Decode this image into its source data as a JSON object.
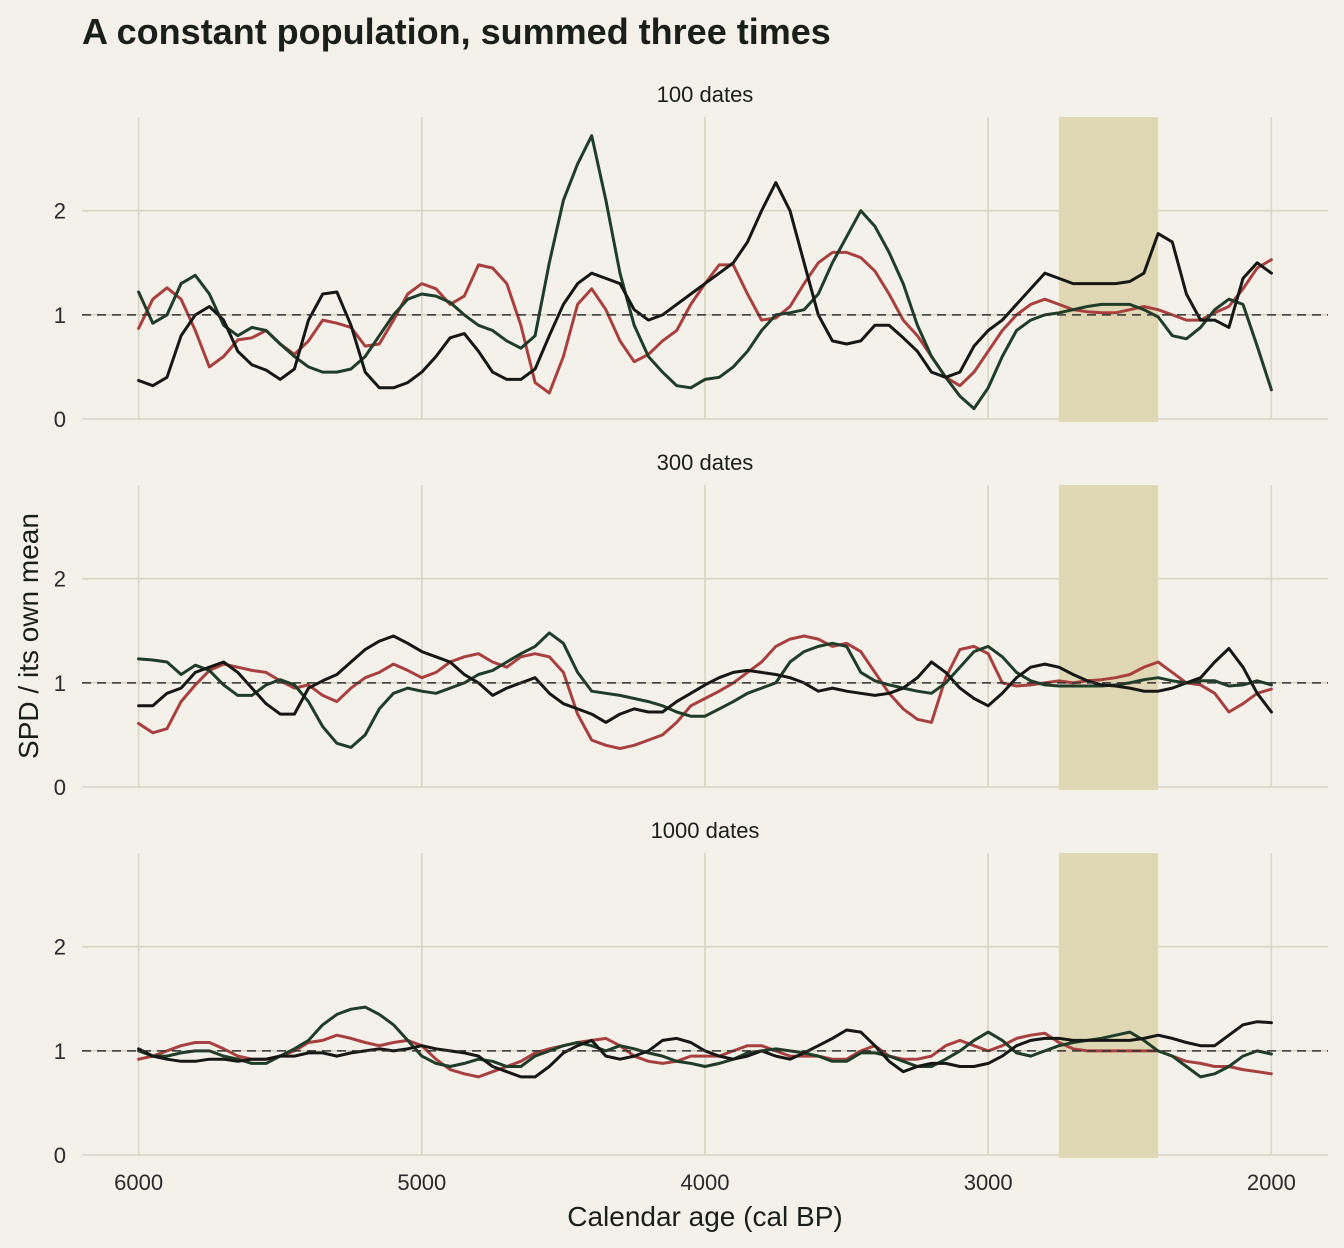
{
  "chart_data": {
    "type": "line",
    "title": "A constant population, summed three times",
    "xlabel": "Calendar age (cal BP)",
    "ylabel": "SPD / its own mean",
    "x_reversed": true,
    "xlim": [
      6200,
      1800
    ],
    "ylim": [
      0,
      2.9
    ],
    "x_ticks": [
      6000,
      5000,
      4000,
      3000,
      2000
    ],
    "y_ticks": [
      0,
      1,
      2
    ],
    "reference_line_y": 1,
    "highlight_band": [
      2750,
      2400
    ],
    "grid": true,
    "colors": {
      "background": "#f3f1ea",
      "band": "#e0d8b4",
      "red": "#a8403f",
      "green": "#1f3d28",
      "black": "#161816"
    },
    "x": [
      6000,
      5950,
      5900,
      5850,
      5800,
      5750,
      5700,
      5650,
      5600,
      5550,
      5500,
      5450,
      5400,
      5350,
      5300,
      5250,
      5200,
      5150,
      5100,
      5050,
      5000,
      4950,
      4900,
      4850,
      4800,
      4750,
      4700,
      4650,
      4600,
      4550,
      4500,
      4450,
      4400,
      4350,
      4300,
      4250,
      4200,
      4150,
      4100,
      4050,
      4000,
      3950,
      3900,
      3850,
      3800,
      3750,
      3700,
      3650,
      3600,
      3550,
      3500,
      3450,
      3400,
      3350,
      3300,
      3250,
      3200,
      3150,
      3100,
      3050,
      3000,
      2950,
      2900,
      2850,
      2800,
      2750,
      2700,
      2650,
      2600,
      2550,
      2500,
      2450,
      2400,
      2350,
      2300,
      2250,
      2200,
      2150,
      2100,
      2050,
      2000
    ],
    "panels": [
      {
        "label": "100 dates",
        "series": [
          {
            "color": "red",
            "values": [
              0.87,
              1.15,
              1.26,
              1.15,
              0.85,
              0.5,
              0.6,
              0.76,
              0.78,
              0.85,
              0.72,
              0.62,
              0.75,
              0.95,
              0.92,
              0.88,
              0.7,
              0.72,
              0.95,
              1.2,
              1.3,
              1.25,
              1.1,
              1.18,
              1.48,
              1.45,
              1.3,
              0.9,
              0.35,
              0.25,
              0.6,
              1.1,
              1.25,
              1.05,
              0.75,
              0.55,
              0.62,
              0.75,
              0.85,
              1.1,
              1.3,
              1.48,
              1.48,
              1.2,
              0.95,
              0.97,
              1.08,
              1.3,
              1.5,
              1.6,
              1.6,
              1.55,
              1.42,
              1.2,
              0.95,
              0.8,
              0.6,
              0.4,
              0.32,
              0.45,
              0.65,
              0.85,
              1.0,
              1.1,
              1.15,
              1.1,
              1.05,
              1.03,
              1.02,
              1.02,
              1.05,
              1.08,
              1.05,
              1.0,
              0.95,
              0.95,
              1.02,
              1.08,
              1.25,
              1.45,
              1.53
            ]
          },
          {
            "color": "green",
            "values": [
              1.22,
              0.92,
              1.0,
              1.3,
              1.38,
              1.2,
              0.9,
              0.8,
              0.88,
              0.85,
              0.72,
              0.6,
              0.5,
              0.45,
              0.45,
              0.48,
              0.6,
              0.8,
              1.0,
              1.15,
              1.2,
              1.18,
              1.12,
              1.0,
              0.9,
              0.85,
              0.75,
              0.68,
              0.8,
              1.5,
              2.1,
              2.45,
              2.72,
              2.1,
              1.4,
              0.9,
              0.6,
              0.45,
              0.32,
              0.3,
              0.38,
              0.4,
              0.5,
              0.65,
              0.85,
              1.0,
              1.02,
              1.05,
              1.2,
              1.5,
              1.75,
              2.0,
              1.85,
              1.6,
              1.3,
              0.9,
              0.6,
              0.4,
              0.22,
              0.1,
              0.3,
              0.6,
              0.85,
              0.95,
              1.0,
              1.02,
              1.05,
              1.08,
              1.1,
              1.1,
              1.1,
              1.05,
              0.98,
              0.8,
              0.77,
              0.88,
              1.05,
              1.15,
              1.1,
              0.7,
              0.28
            ]
          },
          {
            "color": "black",
            "values": [
              0.37,
              0.32,
              0.4,
              0.8,
              1.0,
              1.08,
              0.95,
              0.65,
              0.52,
              0.47,
              0.38,
              0.48,
              0.95,
              1.2,
              1.22,
              0.9,
              0.45,
              0.3,
              0.3,
              0.35,
              0.45,
              0.6,
              0.78,
              0.82,
              0.65,
              0.45,
              0.38,
              0.38,
              0.48,
              0.8,
              1.1,
              1.3,
              1.4,
              1.35,
              1.3,
              1.05,
              0.95,
              1.0,
              1.1,
              1.2,
              1.3,
              1.4,
              1.5,
              1.7,
              2.0,
              2.27,
              2.0,
              1.5,
              1.0,
              0.75,
              0.72,
              0.75,
              0.9,
              0.9,
              0.78,
              0.65,
              0.45,
              0.4,
              0.45,
              0.7,
              0.85,
              0.95,
              1.1,
              1.25,
              1.4,
              1.35,
              1.3,
              1.3,
              1.3,
              1.3,
              1.32,
              1.4,
              1.78,
              1.7,
              1.2,
              0.95,
              0.95,
              0.88,
              1.35,
              1.5,
              1.4
            ]
          }
        ]
      },
      {
        "label": "300 dates",
        "series": [
          {
            "color": "red",
            "values": [
              0.61,
              0.52,
              0.56,
              0.82,
              0.98,
              1.12,
              1.18,
              1.15,
              1.12,
              1.1,
              1.02,
              0.95,
              0.98,
              0.88,
              0.82,
              0.95,
              1.05,
              1.1,
              1.18,
              1.12,
              1.05,
              1.1,
              1.2,
              1.25,
              1.28,
              1.2,
              1.15,
              1.25,
              1.28,
              1.25,
              1.1,
              0.7,
              0.45,
              0.4,
              0.37,
              0.4,
              0.45,
              0.5,
              0.62,
              0.78,
              0.85,
              0.92,
              1.0,
              1.1,
              1.2,
              1.35,
              1.42,
              1.45,
              1.42,
              1.35,
              1.38,
              1.3,
              1.1,
              0.9,
              0.75,
              0.65,
              0.62,
              1.05,
              1.32,
              1.35,
              1.28,
              1.0,
              0.97,
              0.98,
              1.0,
              1.02,
              1.0,
              1.02,
              1.03,
              1.05,
              1.08,
              1.15,
              1.2,
              1.1,
              1.0,
              0.98,
              0.9,
              0.72,
              0.8,
              0.9,
              0.94
            ]
          },
          {
            "color": "green",
            "values": [
              1.23,
              1.22,
              1.2,
              1.08,
              1.17,
              1.12,
              0.98,
              0.88,
              0.88,
              0.98,
              1.03,
              0.98,
              0.82,
              0.58,
              0.42,
              0.38,
              0.5,
              0.75,
              0.9,
              0.95,
              0.92,
              0.9,
              0.95,
              1.0,
              1.08,
              1.12,
              1.2,
              1.28,
              1.35,
              1.48,
              1.38,
              1.1,
              0.92,
              0.9,
              0.88,
              0.85,
              0.82,
              0.78,
              0.72,
              0.68,
              0.68,
              0.75,
              0.82,
              0.9,
              0.95,
              1.0,
              1.2,
              1.3,
              1.35,
              1.38,
              1.35,
              1.1,
              1.02,
              0.98,
              0.95,
              0.92,
              0.9,
              1.0,
              1.15,
              1.3,
              1.35,
              1.25,
              1.1,
              1.02,
              0.98,
              0.97,
              0.97,
              0.97,
              0.97,
              0.98,
              1.0,
              1.03,
              1.05,
              1.02,
              1.0,
              1.02,
              1.02,
              0.97,
              0.98,
              1.02,
              0.98
            ]
          },
          {
            "color": "black",
            "values": [
              0.78,
              0.78,
              0.9,
              0.95,
              1.1,
              1.15,
              1.2,
              1.1,
              0.95,
              0.8,
              0.7,
              0.7,
              0.95,
              1.02,
              1.08,
              1.2,
              1.32,
              1.4,
              1.45,
              1.38,
              1.3,
              1.25,
              1.2,
              1.08,
              1.0,
              0.88,
              0.95,
              1.0,
              1.05,
              0.9,
              0.8,
              0.75,
              0.7,
              0.62,
              0.7,
              0.75,
              0.72,
              0.72,
              0.82,
              0.9,
              0.98,
              1.05,
              1.1,
              1.12,
              1.1,
              1.08,
              1.05,
              1.0,
              0.92,
              0.95,
              0.92,
              0.9,
              0.88,
              0.9,
              0.95,
              1.05,
              1.2,
              1.1,
              0.95,
              0.85,
              0.78,
              0.9,
              1.05,
              1.15,
              1.18,
              1.15,
              1.08,
              1.02,
              0.98,
              0.97,
              0.95,
              0.92,
              0.92,
              0.95,
              1.0,
              1.05,
              1.2,
              1.33,
              1.15,
              0.9,
              0.72
            ]
          }
        ]
      },
      {
        "label": "1000 dates",
        "series": [
          {
            "color": "red",
            "values": [
              0.92,
              0.95,
              1.0,
              1.05,
              1.08,
              1.08,
              1.02,
              0.95,
              0.92,
              0.92,
              0.95,
              1.0,
              1.08,
              1.1,
              1.15,
              1.12,
              1.08,
              1.05,
              1.08,
              1.1,
              1.05,
              0.92,
              0.82,
              0.78,
              0.75,
              0.8,
              0.85,
              0.9,
              0.98,
              1.02,
              1.05,
              1.08,
              1.1,
              1.12,
              1.05,
              0.95,
              0.9,
              0.88,
              0.9,
              0.95,
              0.95,
              0.95,
              1.0,
              1.05,
              1.05,
              1.0,
              0.95,
              0.95,
              0.95,
              0.92,
              0.92,
              1.0,
              1.05,
              0.95,
              0.92,
              0.92,
              0.95,
              1.05,
              1.1,
              1.05,
              1.0,
              1.05,
              1.12,
              1.15,
              1.17,
              1.08,
              1.02,
              1.0,
              1.0,
              1.0,
              1.0,
              1.0,
              1.0,
              0.95,
              0.9,
              0.88,
              0.85,
              0.85,
              0.82,
              0.8,
              0.78
            ]
          },
          {
            "color": "green",
            "values": [
              1.0,
              0.95,
              0.95,
              0.98,
              1.0,
              1.0,
              0.95,
              0.92,
              0.88,
              0.88,
              0.95,
              1.02,
              1.1,
              1.25,
              1.35,
              1.4,
              1.42,
              1.35,
              1.25,
              1.1,
              0.95,
              0.88,
              0.85,
              0.88,
              0.92,
              0.9,
              0.85,
              0.85,
              0.95,
              1.0,
              1.05,
              1.08,
              1.05,
              1.0,
              1.05,
              1.02,
              0.98,
              0.95,
              0.9,
              0.88,
              0.85,
              0.88,
              0.92,
              0.98,
              1.0,
              1.02,
              1.0,
              0.98,
              0.95,
              0.9,
              0.9,
              0.98,
              0.98,
              0.95,
              0.9,
              0.85,
              0.85,
              0.92,
              1.0,
              1.1,
              1.18,
              1.1,
              0.98,
              0.95,
              1.0,
              1.05,
              1.08,
              1.1,
              1.12,
              1.15,
              1.18,
              1.1,
              1.0,
              0.95,
              0.85,
              0.75,
              0.78,
              0.85,
              0.95,
              1.0,
              0.97
            ]
          },
          {
            "color": "black",
            "values": [
              1.02,
              0.95,
              0.92,
              0.9,
              0.9,
              0.92,
              0.92,
              0.9,
              0.92,
              0.92,
              0.95,
              0.95,
              0.98,
              0.98,
              0.95,
              0.98,
              1.0,
              1.02,
              1.0,
              1.02,
              1.05,
              1.02,
              1.0,
              0.98,
              0.95,
              0.85,
              0.8,
              0.75,
              0.75,
              0.85,
              0.98,
              1.05,
              1.1,
              0.95,
              0.92,
              0.95,
              1.0,
              1.1,
              1.12,
              1.08,
              1.0,
              0.95,
              0.92,
              0.95,
              1.0,
              0.95,
              0.92,
              0.98,
              1.05,
              1.12,
              1.2,
              1.18,
              1.05,
              0.9,
              0.8,
              0.85,
              0.88,
              0.88,
              0.85,
              0.85,
              0.88,
              0.95,
              1.05,
              1.1,
              1.12,
              1.12,
              1.1,
              1.1,
              1.1,
              1.1,
              1.1,
              1.12,
              1.15,
              1.12,
              1.08,
              1.05,
              1.05,
              1.15,
              1.25,
              1.28,
              1.27
            ]
          }
        ]
      }
    ]
  }
}
